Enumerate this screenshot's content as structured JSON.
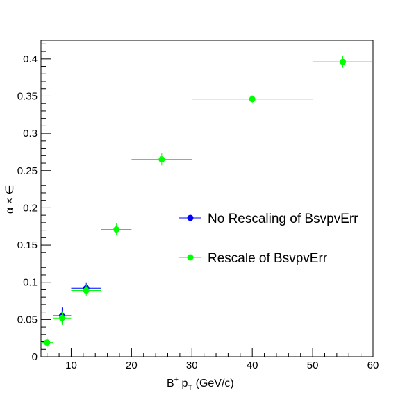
{
  "chart_data": {
    "type": "scatter",
    "title": "",
    "xlabel": {
      "base": "B",
      "sup": "+",
      "mid": " p",
      "sub": "T",
      "tail": " (GeV/c)"
    },
    "ylabel": "α × ∈",
    "xlim": [
      5,
      60
    ],
    "ylim": [
      0,
      0.425
    ],
    "x_ticks": [
      10,
      20,
      30,
      40,
      50,
      60
    ],
    "x_tick_labels": [
      "10",
      "20",
      "30",
      "40",
      "50",
      "60"
    ],
    "y_ticks": [
      0,
      0.05,
      0.1,
      0.15,
      0.2,
      0.25,
      0.3,
      0.35,
      0.4
    ],
    "y_tick_labels": [
      "0",
      "0.05",
      "0.1",
      "0.15",
      "0.2",
      "0.25",
      "0.3",
      "0.35",
      "0.4"
    ],
    "grid": false,
    "legend_position": "center-right",
    "series": [
      {
        "name": "No Rescaling of BsvpvErr",
        "color": "#0000ff",
        "points": [
          {
            "x": 8.5,
            "y": 0.055,
            "xlo": 7,
            "xhi": 10,
            "yerr": 0.011
          },
          {
            "x": 12.5,
            "y": 0.092,
            "xlo": 10,
            "xhi": 15,
            "yerr": 0.007
          }
        ]
      },
      {
        "name": "Rescale of BsvpvErr",
        "color": "#00ff00",
        "points": [
          {
            "x": 6,
            "y": 0.019,
            "xlo": 5,
            "xhi": 7,
            "yerr": 0.007
          },
          {
            "x": 8.5,
            "y": 0.052,
            "xlo": 7,
            "xhi": 10,
            "yerr": 0.009
          },
          {
            "x": 12.5,
            "y": 0.089,
            "xlo": 10,
            "xhi": 15,
            "yerr": 0.008
          },
          {
            "x": 17.5,
            "y": 0.171,
            "xlo": 15,
            "xhi": 20,
            "yerr": 0.008
          },
          {
            "x": 25,
            "y": 0.265,
            "xlo": 20,
            "xhi": 30,
            "yerr": 0.008
          },
          {
            "x": 40,
            "y": 0.346,
            "xlo": 30,
            "xhi": 50,
            "yerr": 0.005
          },
          {
            "x": 55,
            "y": 0.396,
            "xlo": 50,
            "xhi": 60,
            "yerr": 0.008
          }
        ]
      }
    ]
  }
}
